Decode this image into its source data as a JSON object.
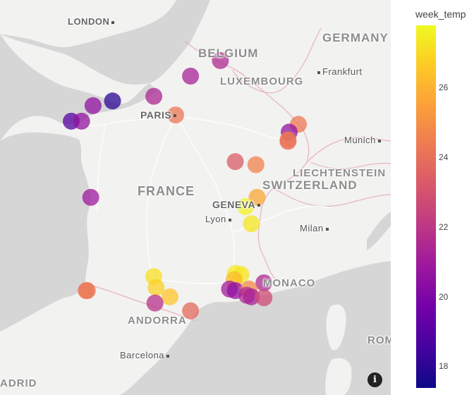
{
  "colorbar": {
    "title": "week_temp",
    "min": 17.4,
    "max": 27.8,
    "ticks": [
      "18",
      "20",
      "22",
      "24",
      "26"
    ],
    "colors": [
      "#0d0887",
      "#46039f",
      "#7201a8",
      "#9c179e",
      "#bd3786",
      "#d8576b",
      "#ed7953",
      "#fb9f3a",
      "#fdca26",
      "#f0f921"
    ]
  },
  "map_labels": {
    "london": "LONDON",
    "belgium": "BELGIUM",
    "germany": "GERMANY",
    "frankfurt": "Frankfurt",
    "luxembourg": "LUXEMBOURG",
    "paris": "PARIS",
    "munich": "Munich",
    "liechtenstein": "LIECHTENSTEIN",
    "switzerland": "SWITZERLAND",
    "france": "FRANCE",
    "geneva": "GENEVA",
    "lyon": "Lyon",
    "milan": "Milan",
    "monaco": "MONACO",
    "andorra": "ANDORRA",
    "barcelona": "Barcelona",
    "madrid": "ADRID",
    "rome": "ROM"
  },
  "info_icon": "i",
  "chart_data": {
    "type": "scatter",
    "color_variable": "week_temp",
    "points": [
      {
        "lon": 4.35,
        "lat": 50.6,
        "week_temp": 21.5
      },
      {
        "lon": 3.05,
        "lat": 50.1,
        "week_temp": 21.3
      },
      {
        "lon": 1.45,
        "lat": 49.45,
        "week_temp": 21.4
      },
      {
        "lon": -0.35,
        "lat": 49.3,
        "week_temp": 18.0
      },
      {
        "lon": -1.2,
        "lat": 49.15,
        "week_temp": 20.6
      },
      {
        "lon": 2.4,
        "lat": 48.85,
        "week_temp": 24.2
      },
      {
        "lon": -2.15,
        "lat": 48.65,
        "week_temp": 19.0
      },
      {
        "lon": -1.7,
        "lat": 48.65,
        "week_temp": 20.6
      },
      {
        "lon": 7.75,
        "lat": 48.55,
        "week_temp": 24.3
      },
      {
        "lon": 7.35,
        "lat": 48.3,
        "week_temp": 20.6
      },
      {
        "lon": 7.3,
        "lat": 48.05,
        "week_temp": 24.7
      },
      {
        "lon": 7.3,
        "lat": 48.0,
        "week_temp": 24.0
      },
      {
        "lon": 5.0,
        "lat": 47.35,
        "week_temp": 23.3
      },
      {
        "lon": 5.9,
        "lat": 47.25,
        "week_temp": 24.6
      },
      {
        "lon": -1.3,
        "lat": 46.2,
        "week_temp": 20.9
      },
      {
        "lon": 5.95,
        "lat": 46.2,
        "week_temp": 25.7
      },
      {
        "lon": 5.45,
        "lat": 45.9,
        "week_temp": 27.6
      },
      {
        "lon": 5.7,
        "lat": 45.35,
        "week_temp": 27.3
      },
      {
        "lon": 1.45,
        "lat": 43.65,
        "week_temp": 27.2
      },
      {
        "lon": 5.0,
        "lat": 43.75,
        "week_temp": 27.5
      },
      {
        "lon": 5.25,
        "lat": 43.72,
        "week_temp": 27.3
      },
      {
        "lon": 4.95,
        "lat": 43.55,
        "week_temp": 26.2
      },
      {
        "lon": 6.25,
        "lat": 43.45,
        "week_temp": 21.5
      },
      {
        "lon": 1.55,
        "lat": 43.3,
        "week_temp": 26.8
      },
      {
        "lon": -1.45,
        "lat": 43.2,
        "week_temp": 24.4
      },
      {
        "lon": -1.5,
        "lat": 43.2,
        "week_temp": 24.2
      },
      {
        "lon": 4.75,
        "lat": 43.25,
        "week_temp": 21.0
      },
      {
        "lon": 5.0,
        "lat": 43.2,
        "week_temp": 20.6
      },
      {
        "lon": 5.6,
        "lat": 43.25,
        "week_temp": 24.8
      },
      {
        "lon": 5.5,
        "lat": 43.05,
        "week_temp": 21.5
      },
      {
        "lon": 5.7,
        "lat": 43.0,
        "week_temp": 21.3
      },
      {
        "lon": 6.25,
        "lat": 42.97,
        "week_temp": 22.7
      },
      {
        "lon": 2.15,
        "lat": 43.0,
        "week_temp": 26.5
      },
      {
        "lon": 1.5,
        "lat": 42.8,
        "week_temp": 21.8
      },
      {
        "lon": 3.05,
        "lat": 42.55,
        "week_temp": 23.8
      }
    ]
  }
}
